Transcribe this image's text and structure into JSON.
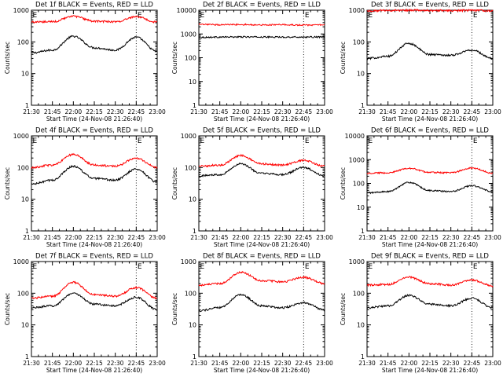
{
  "figure": {
    "ylabel": "Counts/sec",
    "xlabel": "Start Time (24-Nov-08 21:26:40)",
    "x_ticks": [
      "21:30",
      "21:45",
      "22:00",
      "22:15",
      "22:30",
      "22:45",
      "23:00"
    ],
    "colors": {
      "events": "#000000",
      "lld": "#ff0000",
      "axes": "#000000",
      "background": "#ffffff"
    }
  },
  "chart_data": [
    {
      "type": "line",
      "y_scale": "log",
      "ylim": [
        1,
        1000
      ],
      "y_ticks": [
        "1",
        "10",
        "100",
        "1000"
      ],
      "title": "Det 1f BLACK = Events, RED = LLD",
      "series": [
        {
          "name": "Events",
          "color": "#000000",
          "time": [
            "21:30",
            "21:45",
            "22:00",
            "22:15",
            "22:30",
            "22:45",
            "23:00"
          ],
          "values": [
            45,
            55,
            150,
            65,
            55,
            140,
            50
          ]
        },
        {
          "name": "LLD",
          "color": "#ff0000",
          "time": [
            "21:30",
            "21:45",
            "22:00",
            "22:15",
            "22:30",
            "22:45",
            "23:00"
          ],
          "values": [
            420,
            430,
            640,
            450,
            430,
            620,
            420
          ]
        }
      ],
      "annotations": [
        {
          "label": "E",
          "time": "21:30"
        },
        {
          "label": "E",
          "time": "22:45"
        }
      ]
    },
    {
      "type": "line",
      "y_scale": "log",
      "ylim": [
        1,
        10000
      ],
      "y_ticks": [
        "1",
        "10",
        "100",
        "1000",
        "10000"
      ],
      "title": "Det 2f BLACK = Events, RED = LLD",
      "series": [
        {
          "name": "Events",
          "color": "#000000",
          "time": [
            "21:30",
            "21:45",
            "22:00",
            "22:15",
            "22:30",
            "22:45",
            "23:00"
          ],
          "values": [
            720,
            740,
            750,
            745,
            740,
            740,
            745
          ]
        },
        {
          "name": "LLD",
          "color": "#ff0000",
          "time": [
            "21:30",
            "21:45",
            "22:00",
            "22:15",
            "22:30",
            "22:45",
            "23:00"
          ],
          "values": [
            2500,
            2450,
            2500,
            2400,
            2450,
            2350,
            2400
          ]
        }
      ],
      "annotations": [
        {
          "label": "E",
          "time": "21:30"
        },
        {
          "label": "E",
          "time": "22:45"
        }
      ]
    },
    {
      "type": "line",
      "y_scale": "log",
      "ylim": [
        1,
        1000
      ],
      "y_ticks": [
        "1",
        "10",
        "100",
        "1000"
      ],
      "title": "Det 3f BLACK = Events, RED = LLD",
      "series": [
        {
          "name": "Events",
          "color": "#000000",
          "time": [
            "21:30",
            "21:45",
            "22:00",
            "22:15",
            "22:30",
            "22:45",
            "23:00"
          ],
          "values": [
            30,
            35,
            90,
            40,
            38,
            55,
            30
          ]
        },
        {
          "name": "LLD",
          "color": "#ff0000",
          "time": [
            "21:30",
            "21:45",
            "22:00",
            "22:15",
            "22:30",
            "22:45",
            "23:00"
          ],
          "values": [
            950,
            980,
            1000,
            980,
            970,
            990,
            960
          ]
        }
      ],
      "annotations": [
        {
          "label": "E",
          "time": "21:30"
        },
        {
          "label": "E",
          "time": "22:45"
        }
      ]
    },
    {
      "type": "line",
      "y_scale": "log",
      "ylim": [
        1,
        1000
      ],
      "y_ticks": [
        "1",
        "10",
        "100",
        "1000"
      ],
      "title": "Det 4f BLACK = Events, RED = LLD",
      "series": [
        {
          "name": "Events",
          "color": "#000000",
          "time": [
            "21:30",
            "21:45",
            "22:00",
            "22:15",
            "22:30",
            "22:45",
            "23:00"
          ],
          "values": [
            30,
            40,
            110,
            45,
            40,
            90,
            35
          ]
        },
        {
          "name": "LLD",
          "color": "#ff0000",
          "time": [
            "21:30",
            "21:45",
            "22:00",
            "22:15",
            "22:30",
            "22:45",
            "23:00"
          ],
          "values": [
            100,
            120,
            260,
            120,
            110,
            200,
            100
          ]
        }
      ],
      "annotations": [
        {
          "label": "E",
          "time": "21:30"
        },
        {
          "label": "E",
          "time": "22:45"
        }
      ]
    },
    {
      "type": "line",
      "y_scale": "log",
      "ylim": [
        1,
        1000
      ],
      "y_ticks": [
        "1",
        "10",
        "100",
        "1000"
      ],
      "title": "Det 5f BLACK = Events, RED = LLD",
      "series": [
        {
          "name": "Events",
          "color": "#000000",
          "time": [
            "21:30",
            "21:45",
            "22:00",
            "22:15",
            "22:30",
            "22:45",
            "23:00"
          ],
          "values": [
            55,
            60,
            130,
            65,
            60,
            100,
            55
          ]
        },
        {
          "name": "LLD",
          "color": "#ff0000",
          "time": [
            "21:30",
            "21:45",
            "22:00",
            "22:15",
            "22:30",
            "22:45",
            "23:00"
          ],
          "values": [
            110,
            120,
            240,
            130,
            120,
            170,
            110
          ]
        }
      ],
      "annotations": [
        {
          "label": "E",
          "time": "21:30"
        },
        {
          "label": "E",
          "time": "22:45"
        }
      ]
    },
    {
      "type": "line",
      "y_scale": "log",
      "ylim": [
        1,
        10000
      ],
      "y_ticks": [
        "1",
        "10",
        "100",
        "1000",
        "10000"
      ],
      "title": "Det 6f BLACK = Events, RED = LLD",
      "series": [
        {
          "name": "Events",
          "color": "#000000",
          "time": [
            "21:30",
            "21:45",
            "22:00",
            "22:15",
            "22:30",
            "22:45",
            "23:00"
          ],
          "values": [
            40,
            45,
            110,
            50,
            45,
            80,
            45
          ]
        },
        {
          "name": "LLD",
          "color": "#ff0000",
          "time": [
            "21:30",
            "21:45",
            "22:00",
            "22:15",
            "22:30",
            "22:45",
            "23:00"
          ],
          "values": [
            270,
            280,
            430,
            290,
            280,
            450,
            270
          ]
        }
      ],
      "annotations": [
        {
          "label": "E",
          "time": "21:30"
        },
        {
          "label": "E",
          "time": "22:45"
        }
      ]
    },
    {
      "type": "line",
      "y_scale": "log",
      "ylim": [
        1,
        1000
      ],
      "y_ticks": [
        "1",
        "10",
        "100",
        "1000"
      ],
      "title": "Det 7f BLACK = Events, RED = LLD",
      "series": [
        {
          "name": "Events",
          "color": "#000000",
          "time": [
            "21:30",
            "21:45",
            "22:00",
            "22:15",
            "22:30",
            "22:45",
            "23:00"
          ],
          "values": [
            35,
            40,
            100,
            45,
            40,
            75,
            30
          ]
        },
        {
          "name": "LLD",
          "color": "#ff0000",
          "time": [
            "21:30",
            "21:45",
            "22:00",
            "22:15",
            "22:30",
            "22:45",
            "23:00"
          ],
          "values": [
            70,
            80,
            220,
            90,
            80,
            150,
            70
          ]
        }
      ],
      "annotations": [
        {
          "label": "E",
          "time": "21:30"
        },
        {
          "label": "E",
          "time": "22:45"
        }
      ]
    },
    {
      "type": "line",
      "y_scale": "log",
      "ylim": [
        1,
        1000
      ],
      "y_ticks": [
        "1",
        "10",
        "100",
        "1000"
      ],
      "title": "Det 8f BLACK = Events, RED = LLD",
      "series": [
        {
          "name": "Events",
          "color": "#000000",
          "time": [
            "21:30",
            "21:45",
            "22:00",
            "22:15",
            "22:30",
            "22:45",
            "23:00"
          ],
          "values": [
            28,
            35,
            90,
            40,
            35,
            50,
            30
          ]
        },
        {
          "name": "LLD",
          "color": "#ff0000",
          "time": [
            "21:30",
            "21:45",
            "22:00",
            "22:15",
            "22:30",
            "22:45",
            "23:00"
          ],
          "values": [
            180,
            200,
            460,
            250,
            230,
            320,
            200
          ]
        }
      ],
      "annotations": [
        {
          "label": "E",
          "time": "21:30"
        },
        {
          "label": "E",
          "time": "22:45"
        }
      ]
    },
    {
      "type": "line",
      "y_scale": "log",
      "ylim": [
        1,
        1000
      ],
      "y_ticks": [
        "1",
        "10",
        "100",
        "1000"
      ],
      "title": "Det 9f BLACK = Events, RED = LLD",
      "series": [
        {
          "name": "Events",
          "color": "#000000",
          "time": [
            "21:30",
            "21:45",
            "22:00",
            "22:15",
            "22:30",
            "22:45",
            "23:00"
          ],
          "values": [
            35,
            40,
            85,
            45,
            40,
            70,
            35
          ]
        },
        {
          "name": "LLD",
          "color": "#ff0000",
          "time": [
            "21:30",
            "21:45",
            "22:00",
            "22:15",
            "22:30",
            "22:45",
            "23:00"
          ],
          "values": [
            180,
            190,
            320,
            200,
            180,
            260,
            170
          ]
        }
      ],
      "annotations": [
        {
          "label": "E",
          "time": "21:30"
        },
        {
          "label": "E",
          "time": "22:45"
        }
      ]
    }
  ]
}
